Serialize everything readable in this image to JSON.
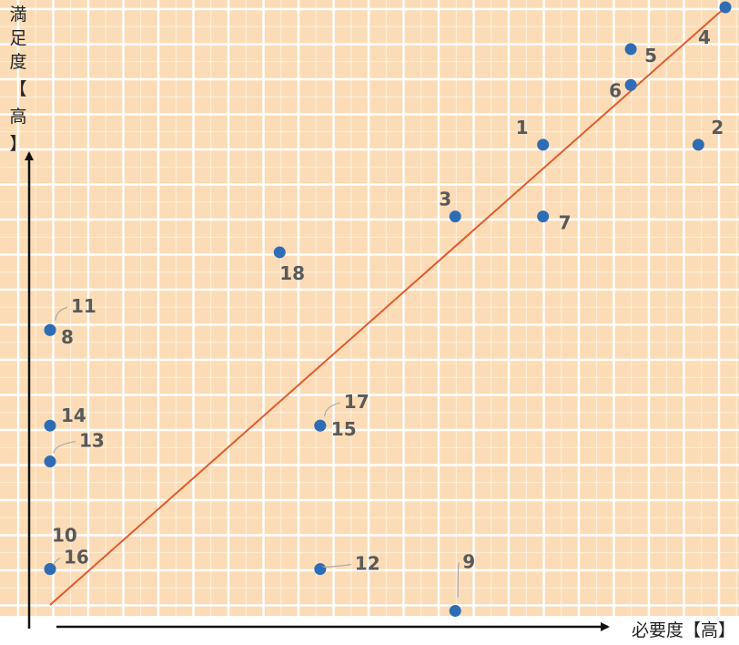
{
  "chart_data": {
    "type": "scatter",
    "xlabel": "必要度【高】",
    "ylabel": "満足度【高】",
    "xlim": [
      0,
      10
    ],
    "ylim": [
      0,
      10
    ],
    "grid": true,
    "trendline": {
      "from": [
        0,
        0
      ],
      "to": [
        10,
        10
      ],
      "color": "#e05a2b"
    },
    "colors": {
      "background": "#fbdcb6",
      "grid": "#ffffff",
      "point": "#2e6db5",
      "label": "#595959"
    },
    "points": [
      {
        "label": "1",
        "x": 7.3,
        "y": 7.7
      },
      {
        "label": "2",
        "x": 9.6,
        "y": 7.7
      },
      {
        "label": "3",
        "x": 6.0,
        "y": 6.5
      },
      {
        "label": "4",
        "x": 10.0,
        "y": 10.0
      },
      {
        "label": "5",
        "x": 8.6,
        "y": 9.3
      },
      {
        "label": "6",
        "x": 8.6,
        "y": 8.7
      },
      {
        "label": "7",
        "x": 7.3,
        "y": 6.5
      },
      {
        "label": "8",
        "x": 0.0,
        "y": 4.6
      },
      {
        "label": "9",
        "x": 6.0,
        "y": -0.1
      },
      {
        "label": "10",
        "x": 0.0,
        "y": 0.6
      },
      {
        "label": "11",
        "x": 0.0,
        "y": 4.6
      },
      {
        "label": "12",
        "x": 4.0,
        "y": 0.6
      },
      {
        "label": "13",
        "x": 0.0,
        "y": 2.4
      },
      {
        "label": "14",
        "x": 0.0,
        "y": 3.0
      },
      {
        "label": "15",
        "x": 4.0,
        "y": 3.0
      },
      {
        "label": "16",
        "x": 0.0,
        "y": 0.6
      },
      {
        "label": "17",
        "x": 4.0,
        "y": 3.0
      },
      {
        "label": "18",
        "x": 3.4,
        "y": 5.9
      }
    ]
  }
}
